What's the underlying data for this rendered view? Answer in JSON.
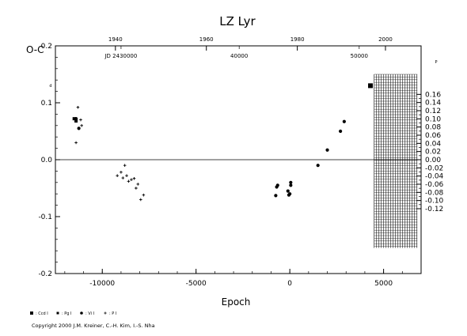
{
  "chart_data": {
    "type": "scatter",
    "title": "LZ Lyr",
    "xlabel": "Epoch",
    "ylabel": "O-C",
    "ylabel_unit_left": "d",
    "ylabel_unit_right": "P",
    "xlim": [
      -12500,
      7000
    ],
    "ylim": [
      -0.2,
      0.2
    ],
    "xticks": [
      -10000,
      -5000,
      0,
      5000
    ],
    "yticks_left": [
      -0.2,
      -0.1,
      0.0,
      0.1,
      0.2
    ],
    "yticks_left_labels": [
      "-0.2",
      "-0.1",
      "0.0",
      "0.1",
      "0.2"
    ],
    "yticks_right": [
      -0.12,
      -0.1,
      -0.08,
      -0.06,
      -0.04,
      -0.02,
      0.0,
      0.02,
      0.04,
      0.06,
      0.08,
      0.1,
      0.12,
      0.14,
      0.16
    ],
    "yticks_right_labels": [
      "-0.12",
      "-0.10",
      "-0.08",
      "-0.06",
      "-0.04",
      "-0.02",
      "0.00",
      "0.02",
      "0.04",
      "0.06",
      "0.08",
      "0.10",
      "0.12",
      "0.14",
      "0.16"
    ],
    "right_axis_scale": 0.7175,
    "top_axis_years": [
      {
        "label": "1940",
        "epoch": -9300
      },
      {
        "label": "1960",
        "epoch": -4450
      },
      {
        "label": "1980",
        "epoch": 400
      },
      {
        "label": "2000",
        "epoch": 5100
      }
    ],
    "top_axis_jd": [
      {
        "label": "JD 2430000",
        "epoch": -9000
      },
      {
        "label": "40000",
        "epoch": -2700
      },
      {
        "label": "50000",
        "epoch": 3700
      }
    ],
    "hatched_region_epoch": [
      4500,
      6800
    ],
    "series": [
      {
        "name": "Ccd I",
        "marker": "square",
        "points": [
          [
            4300,
            0.13
          ]
        ]
      },
      {
        "name": "Pg I",
        "marker": "square-small",
        "points": [
          [
            -11500,
            0.072
          ],
          [
            -11400,
            0.068
          ]
        ]
      },
      {
        "name": "Vi I",
        "marker": "circle",
        "points": [
          [
            -11400,
            0.072
          ],
          [
            -11250,
            0.055
          ],
          [
            -700,
            -0.048
          ],
          [
            -650,
            -0.045
          ],
          [
            -750,
            -0.063
          ],
          [
            -100,
            -0.055
          ],
          [
            -50,
            -0.062
          ],
          [
            0,
            -0.06
          ],
          [
            50,
            -0.045
          ],
          [
            50,
            -0.04
          ],
          [
            1500,
            -0.01
          ],
          [
            2000,
            0.017
          ],
          [
            2700,
            0.05
          ],
          [
            2900,
            0.067
          ]
        ]
      },
      {
        "name": "P I",
        "marker": "plus",
        "points": [
          [
            -11300,
            0.092
          ],
          [
            -11150,
            0.07
          ],
          [
            -11400,
            0.03
          ],
          [
            -11100,
            0.06
          ],
          [
            -9200,
            -0.028
          ],
          [
            -9000,
            -0.022
          ],
          [
            -8900,
            -0.032
          ],
          [
            -8800,
            -0.01
          ],
          [
            -8700,
            -0.028
          ],
          [
            -8600,
            -0.038
          ],
          [
            -8450,
            -0.035
          ],
          [
            -8300,
            -0.033
          ],
          [
            -8200,
            -0.05
          ],
          [
            -8100,
            -0.043
          ],
          [
            -7950,
            -0.07
          ],
          [
            -7800,
            -0.062
          ]
        ]
      }
    ],
    "legend_position": "bottom-left",
    "grid": false
  },
  "legend": {
    "items": [
      {
        "label": ": Ccd  I",
        "marker": "square-big"
      },
      {
        "label": ": Pg  I",
        "marker": "square"
      },
      {
        "label": ": Vi  I",
        "marker": "circle"
      },
      {
        "label": ": P  I",
        "marker": "plus"
      }
    ]
  },
  "copyright": "Copyright 2000 J.M. Kreiner, C.-H. Kim, I.-S. Nha"
}
